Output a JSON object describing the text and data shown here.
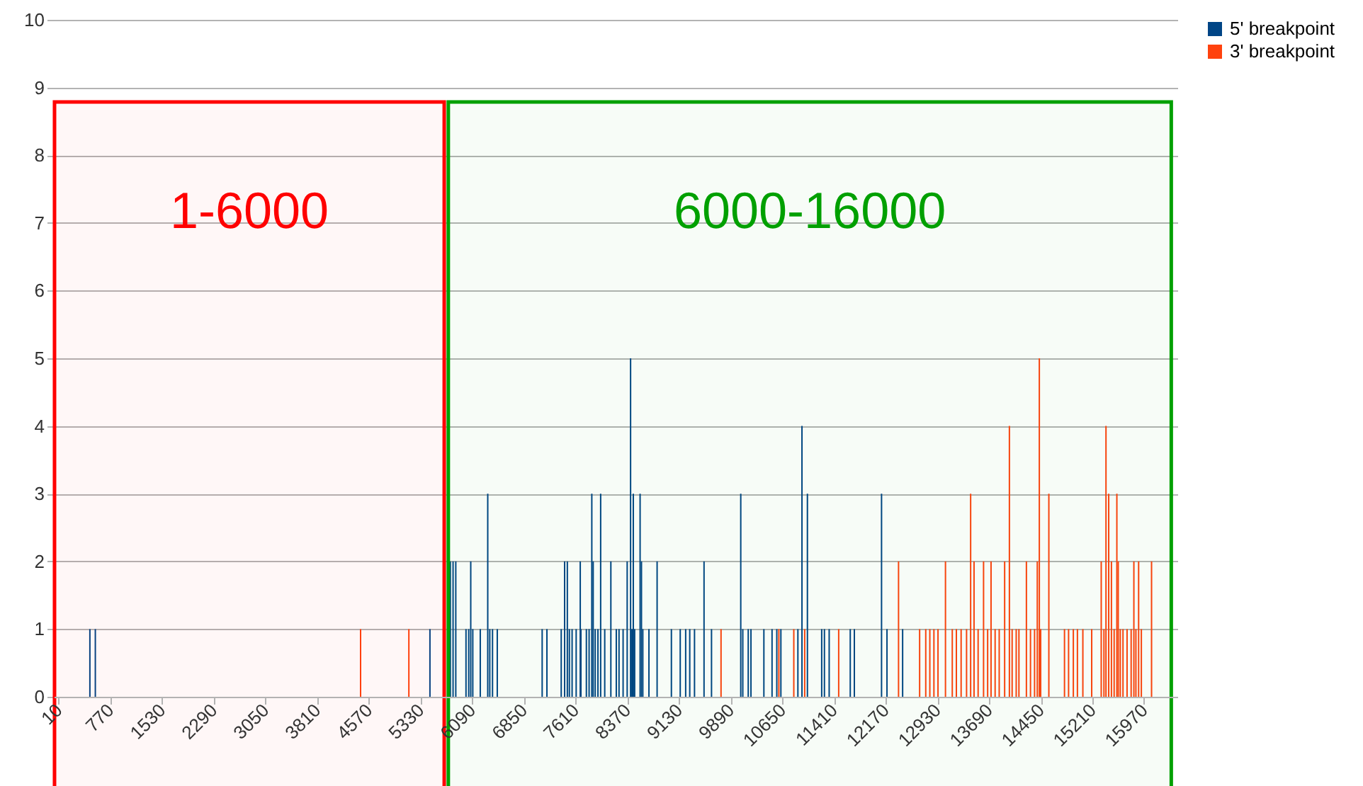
{
  "chart_data": {
    "type": "bar",
    "xlim": [
      -60,
      16460
    ],
    "xticks": [
      10,
      770,
      1530,
      2290,
      3050,
      3810,
      4570,
      5330,
      6090,
      6850,
      7610,
      8370,
      9130,
      9890,
      10650,
      11410,
      12170,
      12930,
      13690,
      14450,
      15210,
      15970
    ],
    "ylim": [
      0,
      10
    ],
    "yticks": [
      0,
      1,
      2,
      3,
      4,
      5,
      6,
      7,
      8,
      9,
      10
    ],
    "grid": "y",
    "legend": "right",
    "series": [
      {
        "name": "5' breakpoint",
        "color": "#004586",
        "x": [
          470,
          550,
          5470,
          5770,
          5810,
          5850,
          6000,
          6040,
          6070,
          6100,
          6210,
          6320,
          6350,
          6390,
          6460,
          7120,
          7190,
          7400,
          7450,
          7490,
          7520,
          7560,
          7620,
          7680,
          7690,
          7770,
          7810,
          7850,
          7870,
          7900,
          7940,
          7980,
          8040,
          8130,
          8210,
          8250,
          8310,
          8370,
          8420,
          8440,
          8460,
          8480,
          8560,
          8580,
          8600,
          8690,
          8810,
          9020,
          9150,
          9230,
          9290,
          9360,
          9500,
          9610,
          10040,
          10070,
          10150,
          10190,
          10380,
          10500,
          10570,
          10630,
          10880,
          10940,
          11020,
          11230,
          11270,
          11340,
          11650,
          11710,
          12110,
          12190,
          12420
        ],
        "values": [
          1,
          1,
          1,
          2,
          2,
          2,
          1,
          1,
          2,
          1,
          1,
          3,
          1,
          1,
          1,
          1,
          1,
          1,
          2,
          2,
          1,
          1,
          1,
          2,
          1,
          1,
          1,
          3,
          2,
          1,
          1,
          3,
          1,
          2,
          1,
          1,
          1,
          2,
          5,
          1,
          3,
          1,
          3,
          2,
          1,
          1,
          2,
          1,
          1,
          1,
          1,
          1,
          2,
          1,
          3,
          1,
          1,
          1,
          1,
          1,
          1,
          1,
          1,
          4,
          3,
          1,
          1,
          1,
          1,
          1,
          3,
          1,
          1
        ]
      },
      {
        "name": "3' breakpoint",
        "color": "#ff420e",
        "x": [
          4450,
          5160,
          9750,
          10600,
          10820,
          10980,
          11480,
          12360,
          12670,
          12760,
          12820,
          12880,
          12940,
          13050,
          13150,
          13210,
          13280,
          13360,
          13420,
          13470,
          13530,
          13610,
          13670,
          13720,
          13780,
          13840,
          13920,
          13990,
          14030,
          14090,
          14130,
          14240,
          14300,
          14360,
          14400,
          14430,
          14450,
          14570,
          14800,
          14860,
          14930,
          14990,
          15070,
          15200,
          15340,
          15380,
          15410,
          15450,
          15490,
          15530,
          15570,
          15590,
          15620,
          15660,
          15720,
          15780,
          15820,
          15850,
          15890,
          15930,
          16080
        ],
        "values": [
          1,
          1,
          1,
          1,
          1,
          1,
          1,
          2,
          1,
          1,
          1,
          1,
          1,
          2,
          1,
          1,
          1,
          1,
          3,
          2,
          1,
          2,
          1,
          2,
          1,
          1,
          2,
          4,
          1,
          1,
          1,
          2,
          1,
          1,
          2,
          5,
          1,
          3,
          1,
          1,
          1,
          1,
          1,
          1,
          2,
          1,
          4,
          3,
          2,
          1,
          3,
          2,
          1,
          1,
          1,
          1,
          2,
          1,
          2,
          1,
          2
        ]
      }
    ],
    "bands": [
      {
        "axis": "x",
        "from": -50,
        "to": 5680,
        "label": "1-6000",
        "color": "#ff0000"
      },
      {
        "axis": "x",
        "from": 5740,
        "to": 16370,
        "label": "6000-16000",
        "color": "#00a000"
      }
    ]
  }
}
